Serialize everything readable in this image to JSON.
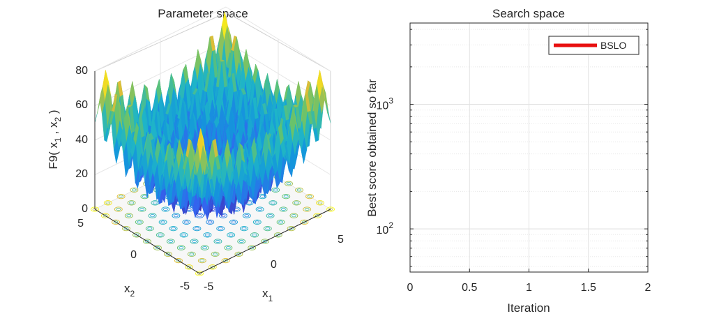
{
  "figure": {
    "left_panel": {
      "title": "Parameter space",
      "zlabel_main": "F9( x",
      "zlabel_sub1": "1",
      "zlabel_mid": " , x",
      "zlabel_sub2": "2",
      "zlabel_end": " )",
      "xlabel_main": "x",
      "xlabel_sub": "1",
      "ylabel_main": "x",
      "ylabel_sub": "2",
      "z_ticks": [
        "0",
        "20",
        "40",
        "60",
        "80"
      ],
      "x1_ticks": [
        "-5",
        "0",
        "5"
      ],
      "x2_ticks": [
        "-5",
        "0",
        "5"
      ]
    },
    "colors": {
      "surface_low": "#3e26a8",
      "surface_mid": "#1fb3c8",
      "surface_high": "#f9c932",
      "surface_top": "#f9fb15",
      "curve": "#e81010"
    }
  },
  "chart_data": {
    "type": "line",
    "title": "Search space",
    "xlabel": "Iteration",
    "ylabel": "Best score obtained so far",
    "xlim": [
      0,
      2
    ],
    "ylim": [
      45,
      4500
    ],
    "yscale": "log",
    "grid": true,
    "legend_position": "top-right",
    "x_ticks": [
      "0",
      "0.5",
      "1",
      "1.5",
      "2"
    ],
    "y_ticks": [
      {
        "base": "10",
        "exp": "2",
        "value": 100
      },
      {
        "base": "10",
        "exp": "3",
        "value": 1000
      }
    ],
    "series": [
      {
        "name": "BSLO",
        "color": "#e81010",
        "x": [],
        "y": []
      }
    ]
  }
}
